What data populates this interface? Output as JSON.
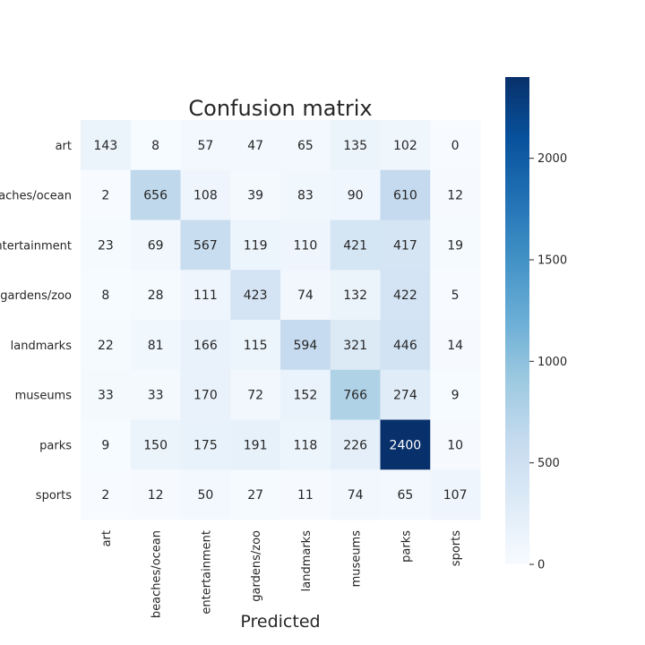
{
  "chart_data": {
    "type": "heatmap",
    "title": "Confusion matrix",
    "xlabel": "Predicted",
    "ylabel": "",
    "row_labels": [
      "art",
      "beaches/ocean",
      "entertainment",
      "gardens/zoo",
      "landmarks",
      "museums",
      "parks",
      "sports"
    ],
    "col_labels": [
      "art",
      "beaches/ocean",
      "entertainment",
      "gardens/zoo",
      "landmarks",
      "museums",
      "parks",
      "sports"
    ],
    "values": [
      [
        143,
        8,
        57,
        47,
        65,
        135,
        102,
        0
      ],
      [
        2,
        656,
        108,
        39,
        83,
        90,
        610,
        12
      ],
      [
        23,
        69,
        567,
        119,
        110,
        421,
        417,
        19
      ],
      [
        8,
        28,
        111,
        423,
        74,
        132,
        422,
        5
      ],
      [
        22,
        81,
        166,
        115,
        594,
        321,
        446,
        14
      ],
      [
        33,
        33,
        170,
        72,
        152,
        766,
        274,
        9
      ],
      [
        9,
        150,
        175,
        191,
        118,
        226,
        2400,
        10
      ],
      [
        2,
        12,
        50,
        27,
        11,
        74,
        65,
        107
      ]
    ],
    "colorbar": {
      "min": 0,
      "max": 2400,
      "ticks": [
        0,
        500,
        1000,
        1500,
        2000
      ],
      "colormap": "Blues"
    },
    "annot_dark_text_color": "#262626",
    "annot_light_text_color": "#ffffff"
  }
}
